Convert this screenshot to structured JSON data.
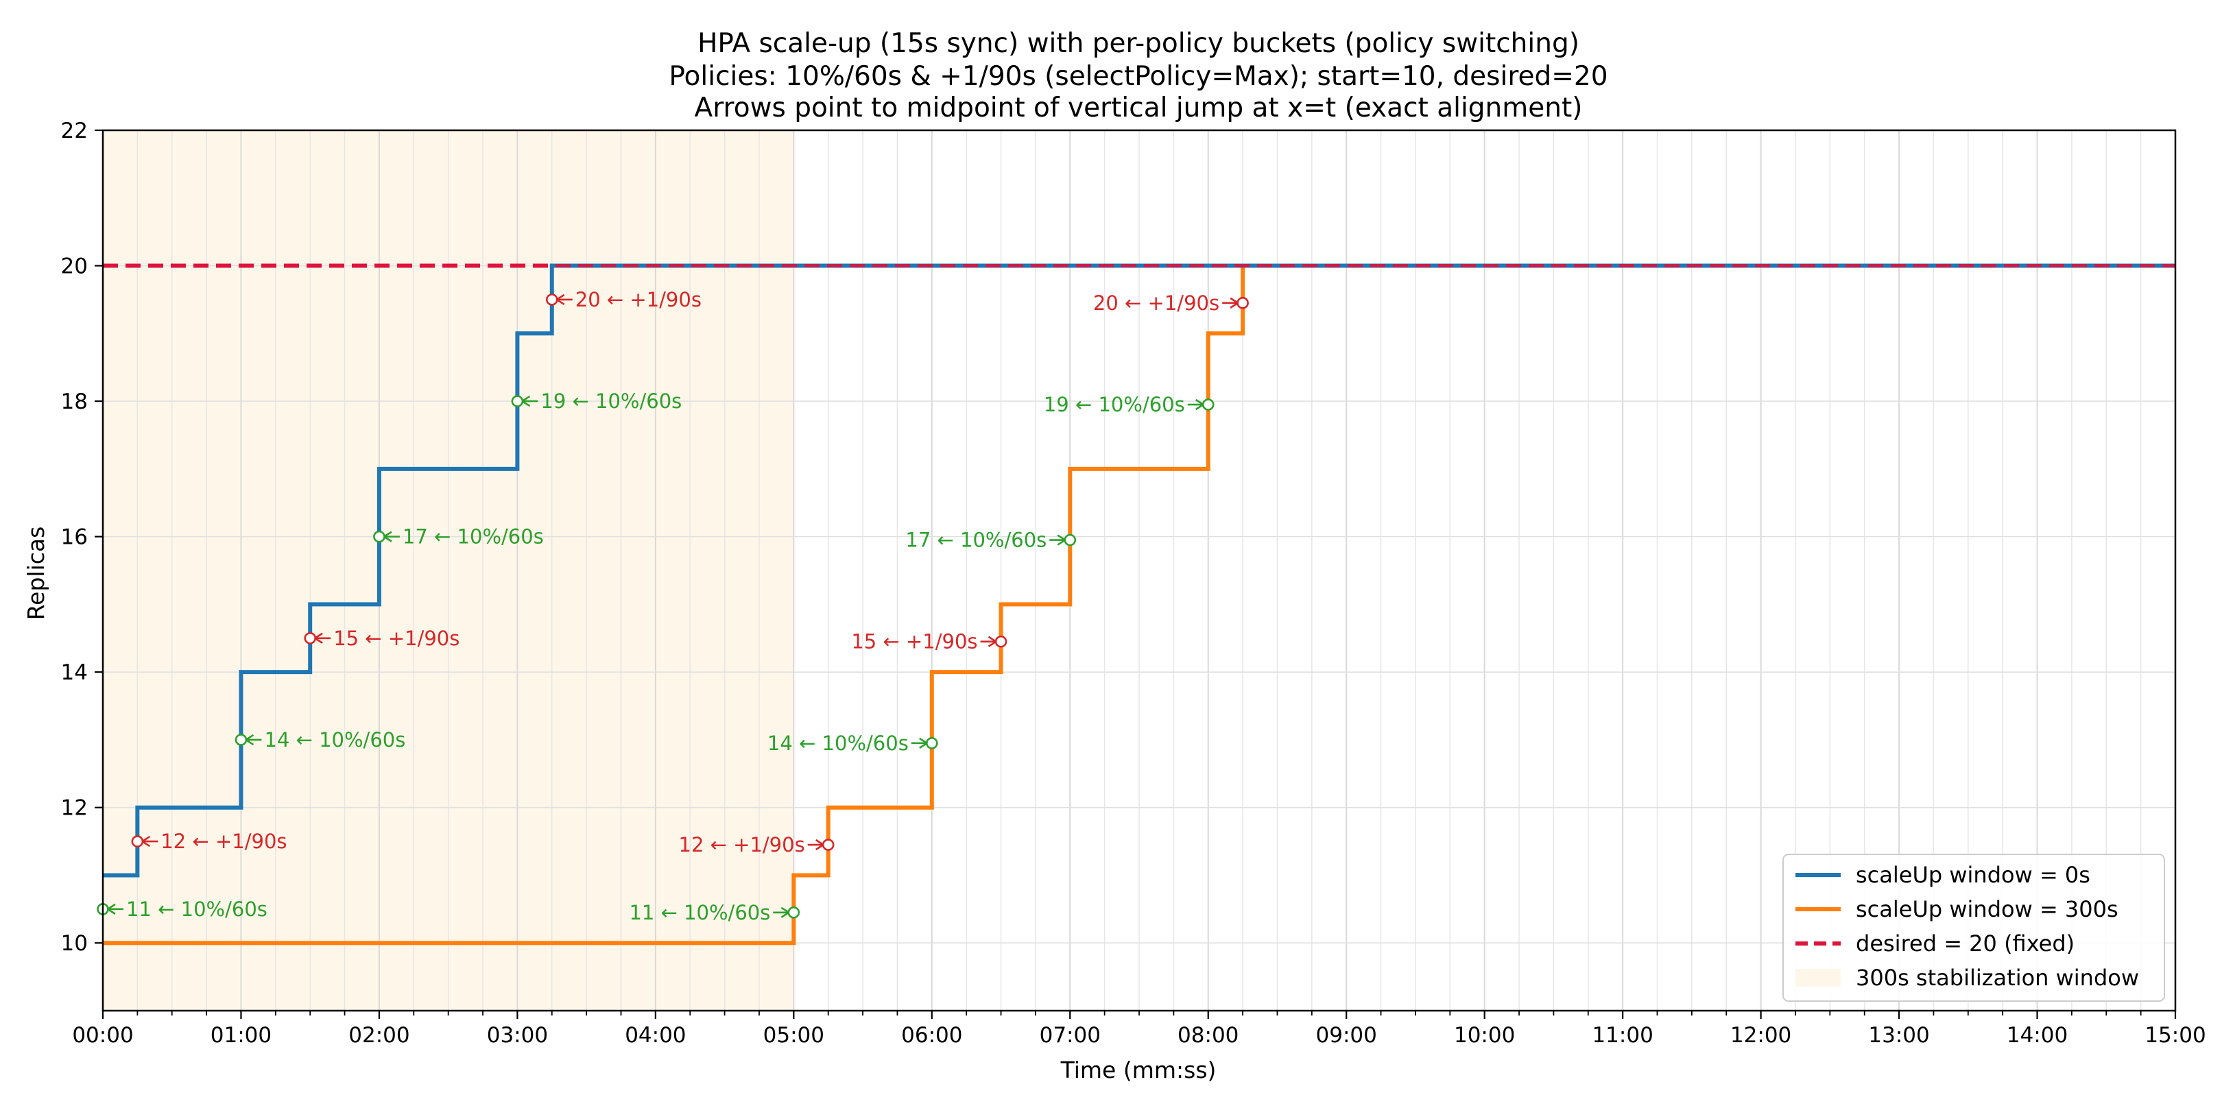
{
  "chart_data": {
    "type": "line",
    "title": [
      "HPA scale-up (15s sync) with per-policy buckets (policy switching)",
      "Policies: 10%/60s & +1/90s (selectPolicy=Max); start=10, desired=20",
      "Arrows point to midpoint of vertical jump at x=t (exact alignment)"
    ],
    "xlabel": "Time (mm:ss)",
    "ylabel": "Replicas",
    "xlim": [
      0,
      900
    ],
    "ylim": [
      9,
      22
    ],
    "x_ticks": [
      {
        "value": 0,
        "label": "00:00"
      },
      {
        "value": 60,
        "label": "01:00"
      },
      {
        "value": 120,
        "label": "02:00"
      },
      {
        "value": 180,
        "label": "03:00"
      },
      {
        "value": 240,
        "label": "04:00"
      },
      {
        "value": 300,
        "label": "05:00"
      },
      {
        "value": 360,
        "label": "06:00"
      },
      {
        "value": 420,
        "label": "07:00"
      },
      {
        "value": 480,
        "label": "08:00"
      },
      {
        "value": 540,
        "label": "09:00"
      },
      {
        "value": 600,
        "label": "10:00"
      },
      {
        "value": 660,
        "label": "11:00"
      },
      {
        "value": 720,
        "label": "12:00"
      },
      {
        "value": 780,
        "label": "13:00"
      },
      {
        "value": 840,
        "label": "14:00"
      },
      {
        "value": 900,
        "label": "15:00"
      }
    ],
    "y_ticks": [
      {
        "value": 10,
        "label": "10"
      },
      {
        "value": 12,
        "label": "12"
      },
      {
        "value": 14,
        "label": "14"
      },
      {
        "value": 16,
        "label": "16"
      },
      {
        "value": 18,
        "label": "18"
      },
      {
        "value": 20,
        "label": "20"
      },
      {
        "value": 22,
        "label": "22"
      }
    ],
    "grid": true,
    "legend_position": "bottom-right",
    "series": [
      {
        "name": "scaleUp window = 0s",
        "color": "#1f77b4",
        "style": "step",
        "x": [
          0,
          15,
          60,
          90,
          120,
          180,
          195,
          900
        ],
        "y": [
          11,
          12,
          14,
          15,
          17,
          19,
          20,
          20
        ]
      },
      {
        "name": "scaleUp window = 300s",
        "color": "#ff7f0e",
        "style": "step",
        "x": [
          0,
          300,
          315,
          360,
          390,
          420,
          480,
          495,
          900
        ],
        "y": [
          10,
          11,
          12,
          14,
          15,
          17,
          19,
          20,
          20
        ]
      },
      {
        "name": "desired = 20 (fixed)",
        "color": "#dc143c",
        "style": "dashed",
        "x": [
          0,
          900
        ],
        "y": [
          20,
          20
        ]
      }
    ],
    "shaded_region": {
      "name": "300s stabilization window",
      "color": "#fff6ea",
      "x": [
        0,
        300
      ]
    },
    "annotations": [
      {
        "x": 0,
        "y": 10.5,
        "text": "11 ← 10%/60s",
        "color": "#2ca02c",
        "side": "right"
      },
      {
        "x": 15,
        "y": 11.5,
        "text": "12 ← +1/90s",
        "color": "#d62728",
        "side": "right"
      },
      {
        "x": 60,
        "y": 13,
        "text": "14 ← 10%/60s",
        "color": "#2ca02c",
        "side": "right"
      },
      {
        "x": 90,
        "y": 14.5,
        "text": "15 ← +1/90s",
        "color": "#d62728",
        "side": "right"
      },
      {
        "x": 120,
        "y": 16,
        "text": "17 ← 10%/60s",
        "color": "#2ca02c",
        "side": "right"
      },
      {
        "x": 180,
        "y": 18,
        "text": "19 ← 10%/60s",
        "color": "#2ca02c",
        "side": "right"
      },
      {
        "x": 195,
        "y": 19.5,
        "text": "20 ← +1/90s",
        "color": "#d62728",
        "side": "right"
      },
      {
        "x": 300,
        "y": 10.45,
        "text": "11 ← 10%/60s",
        "color": "#2ca02c",
        "side": "left"
      },
      {
        "x": 315,
        "y": 11.45,
        "text": "12 ← +1/90s",
        "color": "#d62728",
        "side": "left"
      },
      {
        "x": 360,
        "y": 12.95,
        "text": "14 ← 10%/60s",
        "color": "#2ca02c",
        "side": "left"
      },
      {
        "x": 390,
        "y": 14.45,
        "text": "15 ← +1/90s",
        "color": "#d62728",
        "side": "left"
      },
      {
        "x": 420,
        "y": 15.95,
        "text": "17 ← 10%/60s",
        "color": "#2ca02c",
        "side": "left"
      },
      {
        "x": 480,
        "y": 17.95,
        "text": "19 ← 10%/60s",
        "color": "#2ca02c",
        "side": "left"
      },
      {
        "x": 495,
        "y": 19.45,
        "text": "20 ← +1/90s",
        "color": "#d62728",
        "side": "left"
      }
    ]
  }
}
